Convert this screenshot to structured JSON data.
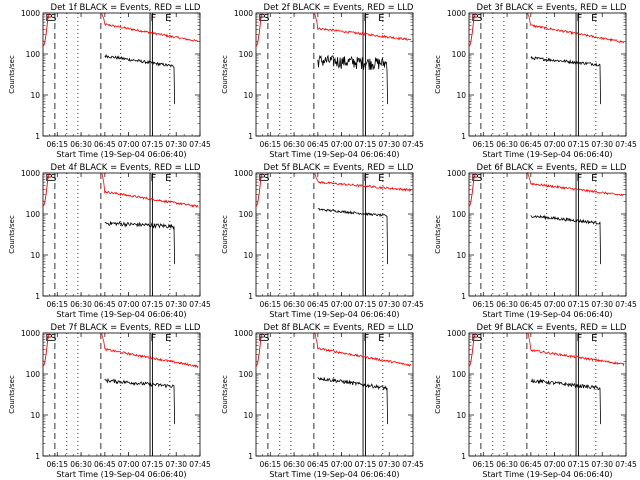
{
  "chart_data": [
    {
      "type": "line",
      "title": "Det 1f BLACK = Events, RED = LLD",
      "ylabel": "Counts/sec",
      "xlabel": "Start Time (19-Sep-04 06:06:40)",
      "x_ticks": [
        "06:15",
        "06:30",
        "06:45",
        "07:00",
        "07:15",
        "07:30",
        "07:45"
      ],
      "y_ticks": [
        "1",
        "10",
        "100",
        "1000"
      ],
      "yscale": "log",
      "ylim": [
        1,
        1000
      ],
      "xlim_minutes": [
        6,
        105
      ],
      "markers": [
        "E",
        "S",
        "F",
        "E"
      ],
      "series": [
        {
          "color": "#ff0000",
          "start": 530,
          "end": 200,
          "dip_level": 260
        },
        {
          "color": "#000000",
          "start": 90,
          "end": 50,
          "noise": 0.08
        }
      ]
    },
    {
      "type": "line",
      "title": "Det 2f BLACK = Events, RED = LLD",
      "ylabel": "Counts/sec",
      "xlabel": "Start Time (19-Sep-04 06:06:40)",
      "x_ticks": [
        "06:15",
        "06:30",
        "06:45",
        "07:00",
        "07:15",
        "07:30",
        "07:45"
      ],
      "y_ticks": [
        "1",
        "10",
        "100",
        "1000"
      ],
      "yscale": "log",
      "ylim": [
        1,
        1000
      ],
      "xlim_minutes": [
        6,
        105
      ],
      "markers": [
        "E",
        "S",
        "F",
        "E"
      ],
      "series": [
        {
          "color": "#ff0000",
          "start": 420,
          "end": 220,
          "dip_level": 250
        },
        {
          "color": "#000000",
          "start": 70,
          "end": 60,
          "noise": 0.35
        }
      ]
    },
    {
      "type": "line",
      "title": "Det 3f BLACK = Events, RED = LLD",
      "ylabel": "Counts/sec",
      "xlabel": "Start Time (19-Sep-04 06:06:40)",
      "x_ticks": [
        "06:15",
        "06:30",
        "06:45",
        "07:00",
        "07:15",
        "07:30",
        "07:45"
      ],
      "y_ticks": [
        "1",
        "10",
        "100",
        "1000"
      ],
      "yscale": "log",
      "ylim": [
        1,
        1000
      ],
      "xlim_minutes": [
        6,
        105
      ],
      "markers": [
        "E",
        "S",
        "F",
        "E"
      ],
      "series": [
        {
          "color": "#ff0000",
          "start": 500,
          "end": 190,
          "dip_level": 230
        },
        {
          "color": "#000000",
          "start": 80,
          "end": 55,
          "noise": 0.08
        }
      ]
    },
    {
      "type": "line",
      "title": "Det 4f BLACK = Events, RED = LLD",
      "ylabel": "Counts/sec",
      "xlabel": "Start Time (19-Sep-04 06:06:40)",
      "x_ticks": [
        "06:15",
        "06:30",
        "06:45",
        "07:00",
        "07:15",
        "07:30",
        "07:45"
      ],
      "y_ticks": [
        "1",
        "10",
        "100",
        "1000"
      ],
      "yscale": "log",
      "ylim": [
        1,
        1000
      ],
      "xlim_minutes": [
        6,
        105
      ],
      "markers": [
        "E",
        "S",
        "F",
        "E"
      ],
      "series": [
        {
          "color": "#ff0000",
          "start": 350,
          "end": 150,
          "dip_level": 180
        },
        {
          "color": "#000000",
          "start": 60,
          "end": 50,
          "noise": 0.12
        }
      ]
    },
    {
      "type": "line",
      "title": "Det 5f BLACK = Events, RED = LLD",
      "ylabel": "Counts/sec",
      "xlabel": "Start Time (19-Sep-04 06:06:40)",
      "x_ticks": [
        "06:15",
        "06:30",
        "06:45",
        "07:00",
        "07:15",
        "07:30",
        "07:45"
      ],
      "y_ticks": [
        "1",
        "10",
        "100",
        "1000"
      ],
      "yscale": "log",
      "ylim": [
        1,
        1000
      ],
      "xlim_minutes": [
        6,
        105
      ],
      "markers": [
        "E",
        "S",
        "F",
        "E"
      ],
      "series": [
        {
          "color": "#ff0000",
          "start": 600,
          "end": 380,
          "dip_level": 420
        },
        {
          "color": "#000000",
          "start": 130,
          "end": 90,
          "noise": 0.06
        }
      ]
    },
    {
      "type": "line",
      "title": "Det 6f BLACK = Events, RED = LLD",
      "ylabel": "Counts/sec",
      "xlabel": "Start Time (19-Sep-04 06:06:40)",
      "x_ticks": [
        "06:15",
        "06:30",
        "06:45",
        "07:00",
        "07:15",
        "07:30",
        "07:45"
      ],
      "y_ticks": [
        "1",
        "10",
        "100",
        "1000"
      ],
      "yscale": "log",
      "ylim": [
        1,
        1000
      ],
      "xlim_minutes": [
        6,
        105
      ],
      "markers": [
        "E",
        "S",
        "F",
        "E"
      ],
      "series": [
        {
          "color": "#ff0000",
          "start": 550,
          "end": 280,
          "dip_level": 300
        },
        {
          "color": "#000000",
          "start": 90,
          "end": 60,
          "noise": 0.08
        }
      ]
    },
    {
      "type": "line",
      "title": "Det 7f BLACK = Events, RED = LLD",
      "ylabel": "Counts/sec",
      "xlabel": "Start Time (19-Sep-04 06:06:40)",
      "x_ticks": [
        "06:15",
        "06:30",
        "06:45",
        "07:00",
        "07:15",
        "07:30",
        "07:45"
      ],
      "y_ticks": [
        "1",
        "10",
        "100",
        "1000"
      ],
      "yscale": "log",
      "ylim": [
        1,
        1000
      ],
      "xlim_minutes": [
        6,
        105
      ],
      "markers": [
        "E",
        "S",
        "F",
        "E"
      ],
      "series": [
        {
          "color": "#ff0000",
          "start": 400,
          "end": 150,
          "dip_level": 170
        },
        {
          "color": "#000000",
          "start": 70,
          "end": 50,
          "noise": 0.1
        }
      ]
    },
    {
      "type": "line",
      "title": "Det 8f BLACK = Events, RED = LLD",
      "ylabel": "Counts/sec",
      "xlabel": "Start Time (19-Sep-04 06:06:40)",
      "x_ticks": [
        "06:15",
        "06:30",
        "06:45",
        "07:00",
        "07:15",
        "07:30",
        "07:45"
      ],
      "y_ticks": [
        "1",
        "10",
        "100",
        "1000"
      ],
      "yscale": "log",
      "ylim": [
        1,
        1000
      ],
      "xlim_minutes": [
        6,
        105
      ],
      "markers": [
        "E",
        "S",
        "F",
        "E"
      ],
      "series": [
        {
          "color": "#ff0000",
          "start": 420,
          "end": 160,
          "dip_level": 190
        },
        {
          "color": "#000000",
          "start": 80,
          "end": 45,
          "noise": 0.1
        }
      ]
    },
    {
      "type": "line",
      "title": "Det 9f BLACK = Events, RED = LLD",
      "ylabel": "Counts/sec",
      "xlabel": "Start Time (19-Sep-04 06:06:40)",
      "x_ticks": [
        "06:15",
        "06:30",
        "06:45",
        "07:00",
        "07:15",
        "07:30",
        "07:45"
      ],
      "y_ticks": [
        "1",
        "10",
        "100",
        "1000"
      ],
      "yscale": "log",
      "ylim": [
        1,
        1000
      ],
      "xlim_minutes": [
        6,
        105
      ],
      "markers": [
        "E",
        "S",
        "F",
        "E"
      ],
      "series": [
        {
          "color": "#ff0000",
          "start": 380,
          "end": 170,
          "dip_level": 180
        },
        {
          "color": "#000000",
          "start": 70,
          "end": 45,
          "noise": 0.1
        }
      ]
    }
  ]
}
